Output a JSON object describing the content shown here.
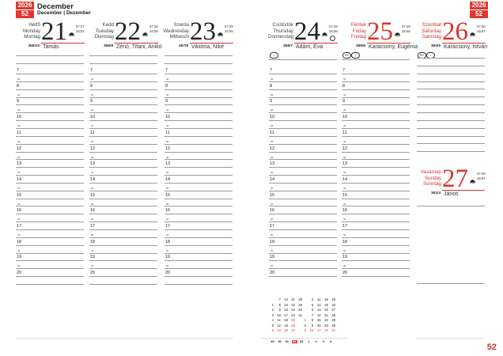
{
  "header": {
    "year": "2026",
    "week": "52",
    "month": "December",
    "month_sub": "December | Dezember"
  },
  "colors": {
    "accent": "#e2382e",
    "holiday": "#d8342b"
  },
  "hours": [
    "7",
    "8",
    "9",
    "10",
    "11",
    "12",
    "13",
    "14",
    "15",
    "16",
    "17",
    "18",
    "19",
    "20"
  ],
  "half_label": "30",
  "days": [
    {
      "names": [
        "Hétfő",
        "Monday",
        "Montag"
      ],
      "number": "21",
      "sunrise": "07:27",
      "sunset": "15:54",
      "doy": "355/10",
      "nameday": "Tamás",
      "holiday": false,
      "moon": false,
      "badges": []
    },
    {
      "names": [
        "Kedd",
        "Tuesday",
        "Dienstag"
      ],
      "number": "22",
      "sunrise": "07:28",
      "sunset": "15:55",
      "doy": "356/9",
      "nameday": "Zénó, Tifani, Anikó",
      "holiday": false,
      "moon": false,
      "badges": []
    },
    {
      "names": [
        "Szerda",
        "Wednesday",
        "Mittwoch"
      ],
      "number": "23",
      "sunrise": "07:29",
      "sunset": "15:55",
      "doy": "357/8",
      "nameday": "Viktória, Niké",
      "holiday": false,
      "moon": false,
      "badges": []
    },
    {
      "names": [
        "Csütörtök",
        "Thursday",
        "Donnerstag"
      ],
      "number": "24",
      "sunrise": "07:29",
      "sunset": "15:56",
      "doy": "358/7",
      "nameday": "Ádám, Éva",
      "holiday": false,
      "moon": true,
      "badges": [
        "•"
      ]
    },
    {
      "names": [
        "Péntek",
        "Friday",
        "Freitag"
      ],
      "number": "25",
      "sunrise": "07:29",
      "sunset": "15:56",
      "doy": "359/6",
      "nameday": "Karácsony, Eugénia",
      "holiday": true,
      "moon": false,
      "badges": [
        "EU",
        "•"
      ]
    },
    {
      "names": [
        "Szombat",
        "Saturday",
        "Samstag"
      ],
      "number": "26",
      "sunrise": "07:30",
      "sunset": "15:57",
      "doy": "360/5",
      "nameday": "Karácsony, István",
      "holiday": true,
      "moon": false,
      "badges": [
        "EU",
        "•"
      ]
    },
    {
      "names": [
        "Vasárnap",
        "Sunday",
        "Sonntag"
      ],
      "number": "27",
      "sunrise": "07:30",
      "sunset": "15:57",
      "doy": "361/4",
      "nameday": "János",
      "holiday": true,
      "moon": false,
      "badges": []
    }
  ],
  "mini_calendar": {
    "december": [
      [
        "",
        "7",
        "14",
        "21",
        "28"
      ],
      [
        "1",
        "8",
        "15",
        "22",
        "29"
      ],
      [
        "2",
        "9",
        "16",
        "23",
        "30"
      ],
      [
        "3",
        "10",
        "17",
        "24",
        "31"
      ],
      [
        "4",
        "11",
        "18",
        "25",
        ""
      ],
      [
        "5",
        "12",
        "19",
        "26",
        ""
      ],
      [
        "6",
        "13",
        "20",
        "27",
        ""
      ]
    ],
    "january": [
      [
        "",
        "4",
        "11",
        "18",
        "25"
      ],
      [
        "",
        "5",
        "12",
        "19",
        "26"
      ],
      [
        "",
        "6",
        "13",
        "20",
        "27"
      ],
      [
        "",
        "7",
        "14",
        "21",
        "28"
      ],
      [
        "1",
        "8",
        "15",
        "22",
        "29"
      ],
      [
        "2",
        "9",
        "16",
        "23",
        "30"
      ],
      [
        "3",
        "10",
        "17",
        "24",
        "31"
      ]
    ],
    "weeks": [
      "49",
      "50",
      "51",
      "52",
      "53",
      "1",
      "2",
      "3",
      "4"
    ],
    "current_week": "52"
  },
  "page_number": "52"
}
